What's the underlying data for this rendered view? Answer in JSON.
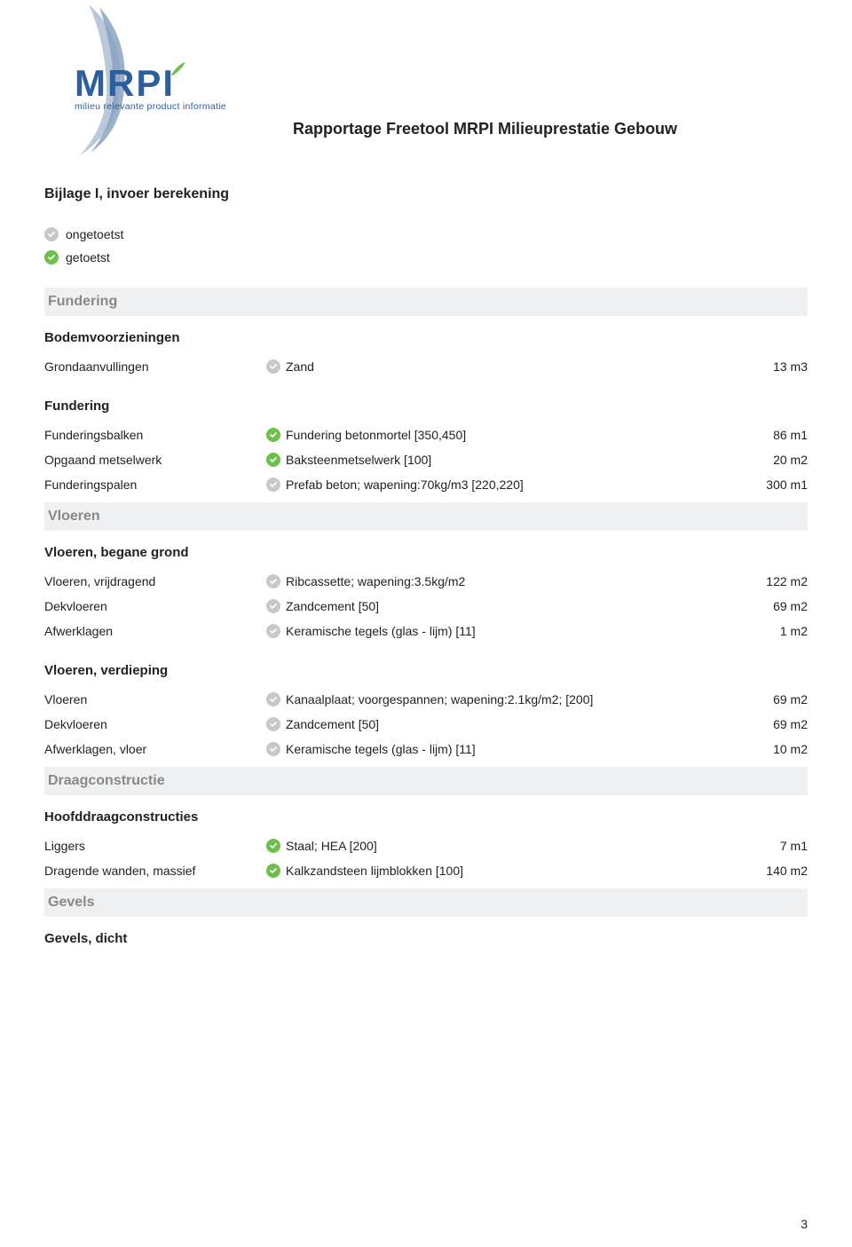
{
  "logo": {
    "name": "MRPI",
    "tagline": "milieu relevante product informatie",
    "colors": {
      "primary": "#2b5f9e",
      "swoosh_light": "#b9c8db",
      "swoosh_dark": "#8aa2c0",
      "leaf": "#6fbf4a"
    }
  },
  "header": {
    "report_title": "Rapportage Freetool MRPI Milieuprestatie Gebouw"
  },
  "bijlage_title": "Bijlage I, invoer berekening",
  "legend": {
    "untested": "ongetoetst",
    "tested": "getoetst"
  },
  "icon_colors": {
    "gray": "#c8c8c8",
    "green": "#6fbf4a",
    "tick": "#ffffff"
  },
  "band_bg": "#eef0f2",
  "band_fg": "#888888",
  "sections": [
    {
      "band": "Fundering",
      "groups": [
        {
          "title": "Bodemvoorzieningen",
          "rows": [
            {
              "label": "Grondaanvullingen",
              "status": "gray",
              "material": "Zand",
              "value": "13 m3"
            }
          ]
        },
        {
          "title": "Fundering",
          "rows": [
            {
              "label": "Funderingsbalken",
              "status": "green",
              "material": "Fundering betonmortel [350,450]",
              "value": "86 m1"
            },
            {
              "label": "Opgaand metselwerk",
              "status": "green",
              "material": "Baksteenmetselwerk [100]",
              "value": "20 m2"
            },
            {
              "label": "Funderingspalen",
              "status": "gray",
              "material": "Prefab beton;  wapening:70kg/m3 [220,220]",
              "value": "300 m1"
            }
          ]
        }
      ]
    },
    {
      "band": "Vloeren",
      "groups": [
        {
          "title": "Vloeren, begane grond",
          "rows": [
            {
              "label": "Vloeren, vrijdragend",
              "status": "gray",
              "material": "Ribcassette; wapening:3.5kg/m2",
              "value": "122 m2"
            },
            {
              "label": "Dekvloeren",
              "status": "gray",
              "material": "Zandcement [50]",
              "value": "69 m2"
            },
            {
              "label": "Afwerklagen",
              "status": "gray",
              "material": "Keramische tegels (glas - lijm) [11]",
              "value": "1 m2"
            }
          ]
        },
        {
          "title": "Vloeren, verdieping",
          "rows": [
            {
              "label": "Vloeren",
              "status": "gray",
              "material": "Kanaalplaat; voorgespannen; wapening:2.1kg/m2;  [200]",
              "value": "69 m2"
            },
            {
              "label": "Dekvloeren",
              "status": "gray",
              "material": "Zandcement [50]",
              "value": "69 m2"
            },
            {
              "label": "Afwerklagen, vloer",
              "status": "gray",
              "material": "Keramische tegels (glas - lijm) [11]",
              "value": "10 m2"
            }
          ]
        }
      ]
    },
    {
      "band": "Draagconstructie",
      "groups": [
        {
          "title": "Hoofddraagconstructies",
          "rows": [
            {
              "label": "Liggers",
              "status": "green",
              "material": "Staal; HEA [200]",
              "value": "7 m1"
            },
            {
              "label": "Dragende wanden, massief",
              "status": "green",
              "material": "Kalkzandsteen lijmblokken [100]",
              "value": "140 m2"
            }
          ]
        }
      ]
    },
    {
      "band": "Gevels",
      "groups": [
        {
          "title": "Gevels, dicht",
          "rows": []
        }
      ]
    }
  ],
  "page_number": "3"
}
